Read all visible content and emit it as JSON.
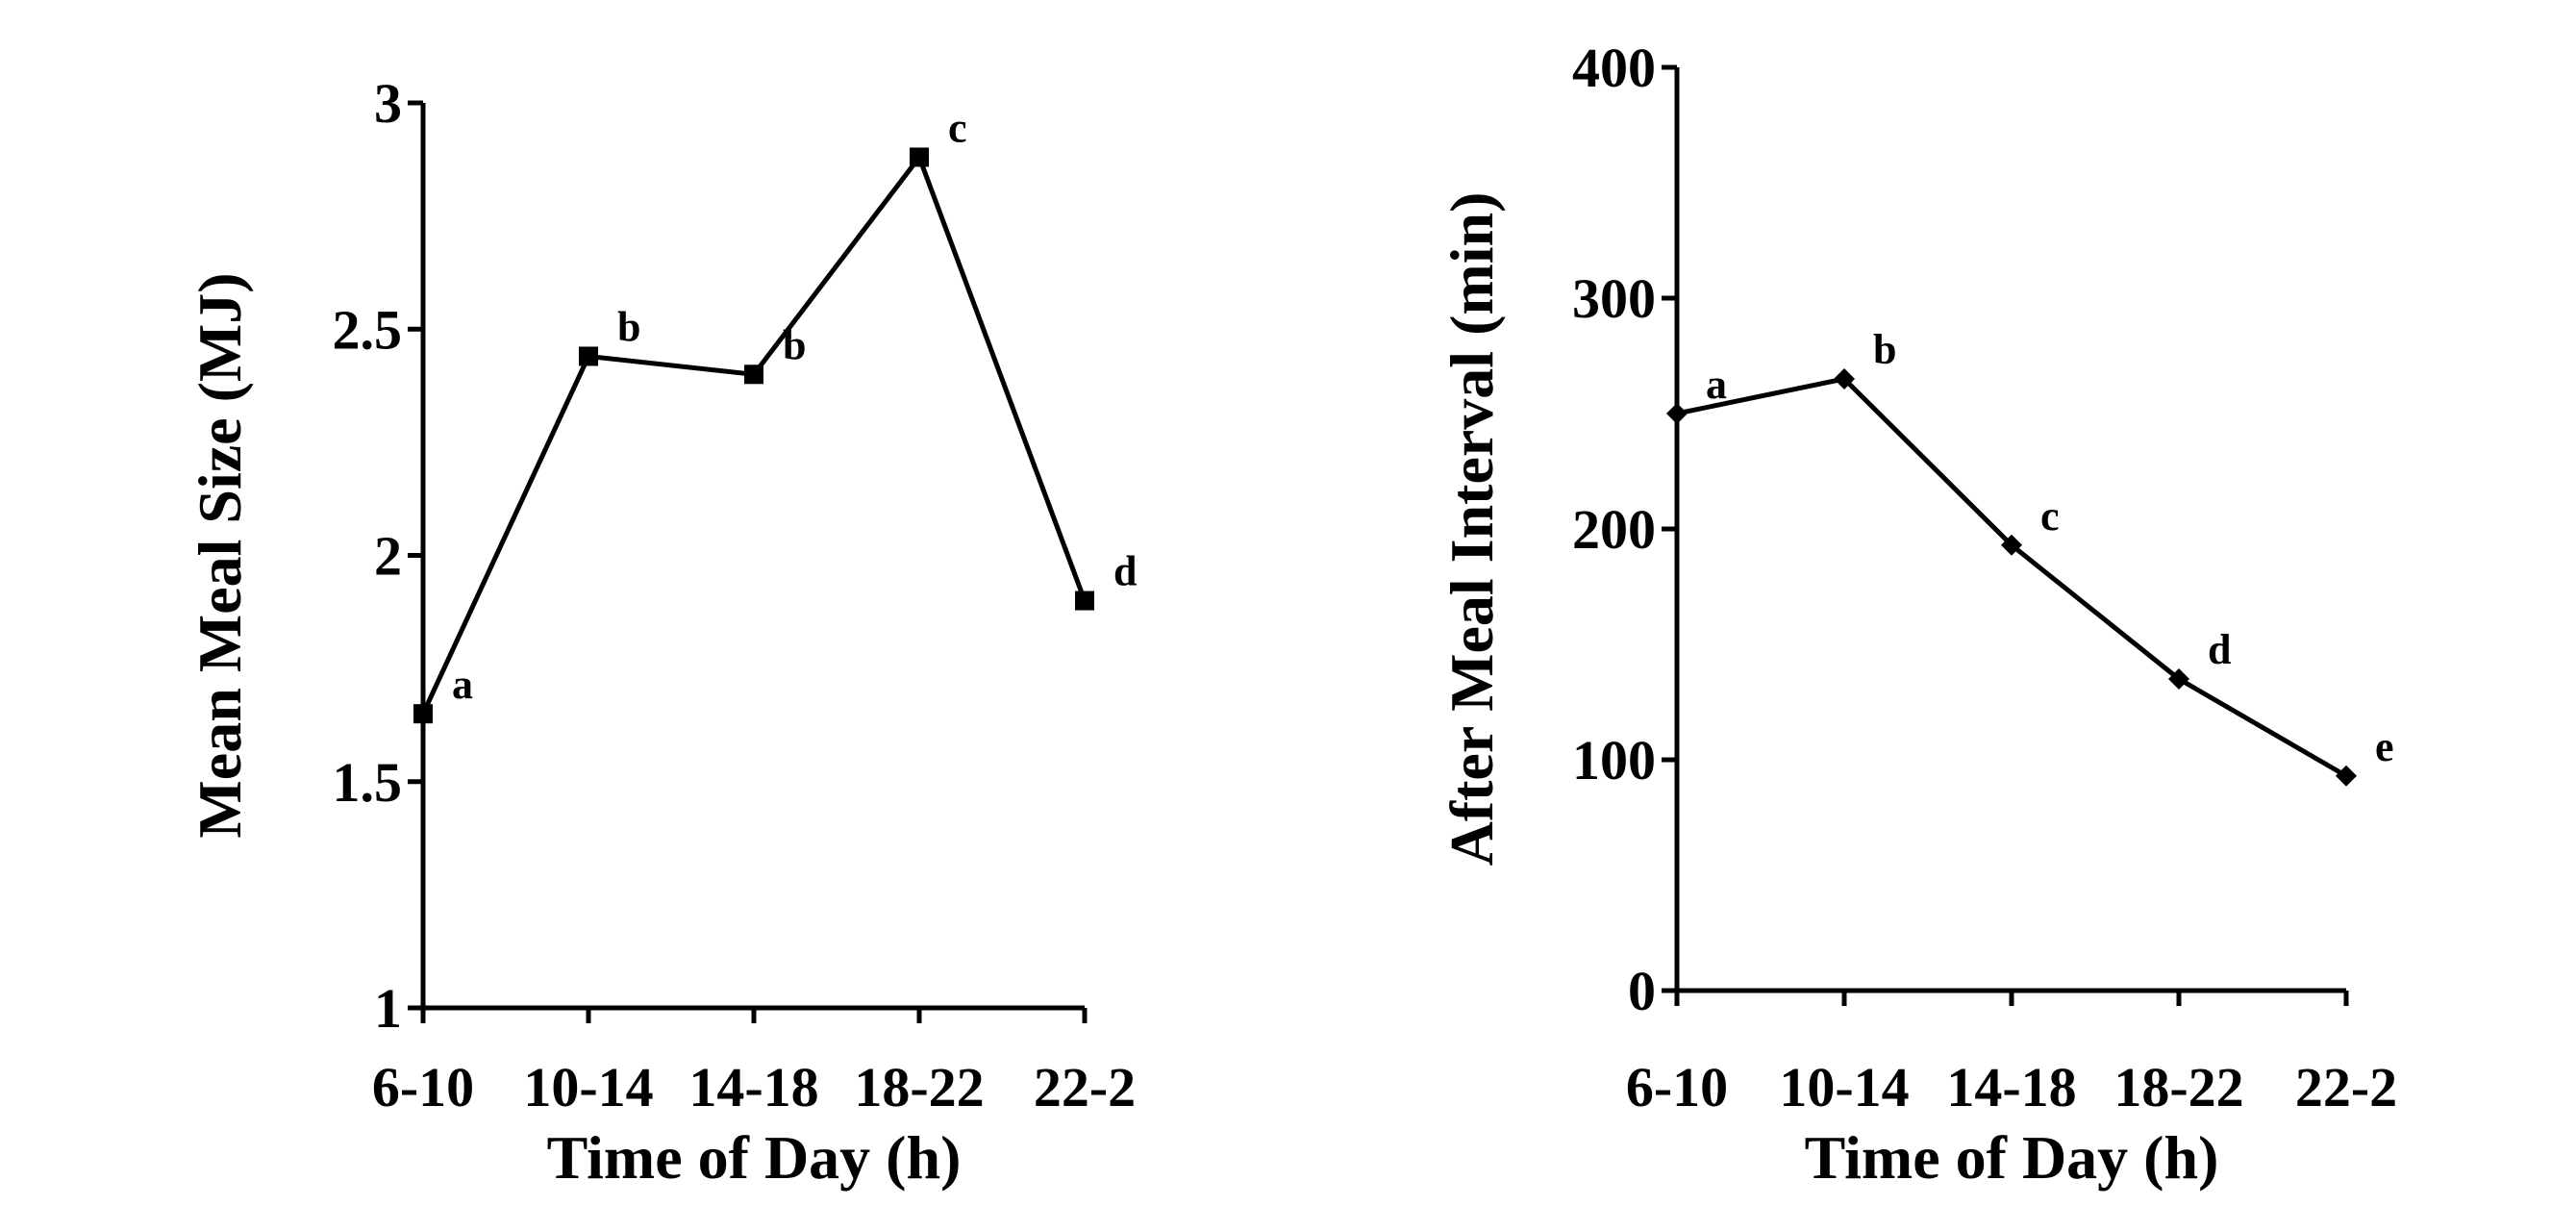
{
  "chart_data": [
    {
      "type": "line",
      "xlabel": "Time of Day (h)",
      "ylabel": "Mean Meal Size (MJ)",
      "categories": [
        "6-10",
        "10-14",
        "14-18",
        "18-22",
        "22-2"
      ],
      "values": [
        1.65,
        2.44,
        2.4,
        2.88,
        1.9
      ],
      "point_labels": [
        "a",
        "b",
        "b",
        "c",
        "d"
      ],
      "ylim": [
        1,
        3
      ],
      "yticks": [
        1,
        1.5,
        2,
        2.5,
        3
      ],
      "ytick_labels": [
        "1",
        "1.5",
        "2",
        "2.5",
        "3"
      ],
      "marker": "square",
      "grid": false,
      "color": "#000000"
    },
    {
      "type": "line",
      "xlabel": "Time of Day (h)",
      "ylabel": "After Meal Interval (min)",
      "categories": [
        "6-10",
        "10-14",
        "14-18",
        "18-22",
        "22-2"
      ],
      "values": [
        250,
        265,
        193,
        135,
        93
      ],
      "point_labels": [
        "a",
        "b",
        "c",
        "d",
        "e"
      ],
      "ylim": [
        0,
        400
      ],
      "yticks": [
        0,
        100,
        200,
        300,
        400
      ],
      "ytick_labels": [
        "0",
        "100",
        "200",
        "300",
        "400"
      ],
      "marker": "diamond",
      "grid": false,
      "color": "#000000"
    }
  ]
}
